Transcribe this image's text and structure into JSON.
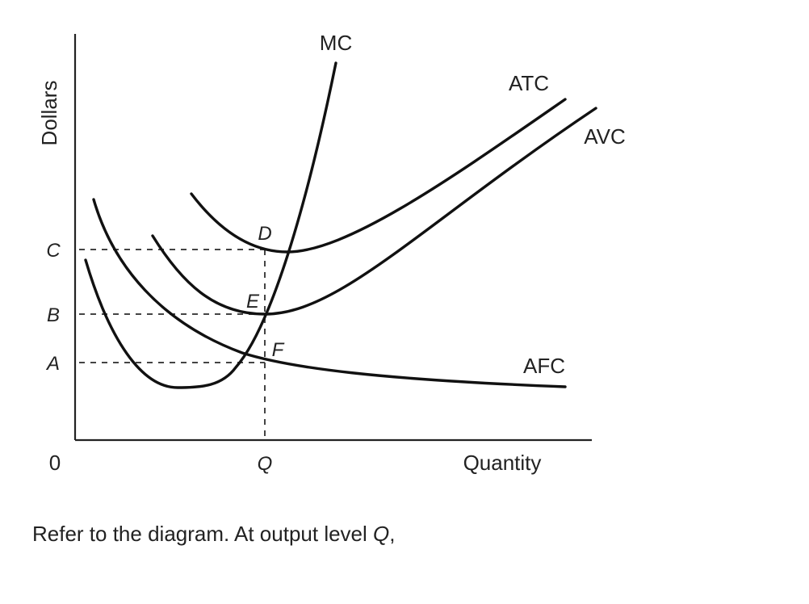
{
  "diagram": {
    "y_axis_label": "Dollars",
    "x_axis_label": "Quantity",
    "origin_label": "0",
    "y_ticks": [
      "C",
      "B",
      "A"
    ],
    "x_tick": "Q",
    "curves": {
      "mc": "MC",
      "atc": "ATC",
      "avc": "AVC",
      "afc": "AFC"
    },
    "points": {
      "d": "D",
      "e": "E",
      "f": "F"
    }
  },
  "caption": {
    "text": "Refer to the diagram. At output level ",
    "emph": "Q",
    "suffix": ","
  }
}
